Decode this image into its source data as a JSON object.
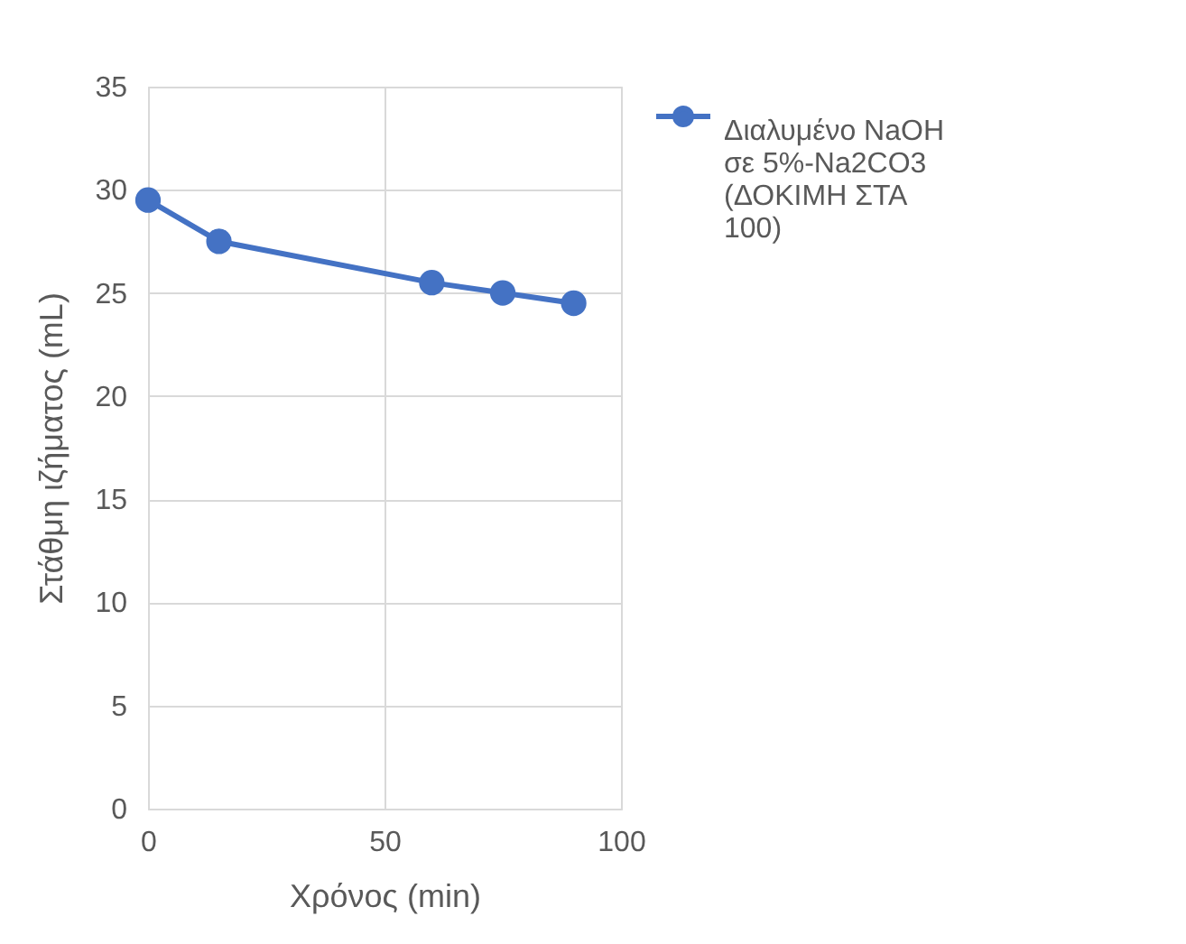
{
  "chart_data": {
    "type": "line",
    "xlabel": "Χρόνος (min)",
    "ylabel": "Στάθμη ιζήματος (mL)",
    "x": [
      0,
      15,
      60,
      75,
      90
    ],
    "series": [
      {
        "name": "Διαλυμένο NaOH σε 5%-Na2CO3 (ΔΟΚΙΜΗ ΣΤΑ 100)",
        "color": "#4472c4",
        "values": [
          29.5,
          27.5,
          25.5,
          25,
          24.5
        ]
      }
    ],
    "xlim": [
      0,
      100
    ],
    "xticks": [
      0,
      50,
      100
    ],
    "ylim": [
      0,
      35
    ],
    "yticks": [
      0,
      5,
      10,
      15,
      20,
      25,
      30,
      35
    ],
    "grid": true,
    "legend": "right",
    "marker": "circle",
    "line_style": "solid"
  }
}
